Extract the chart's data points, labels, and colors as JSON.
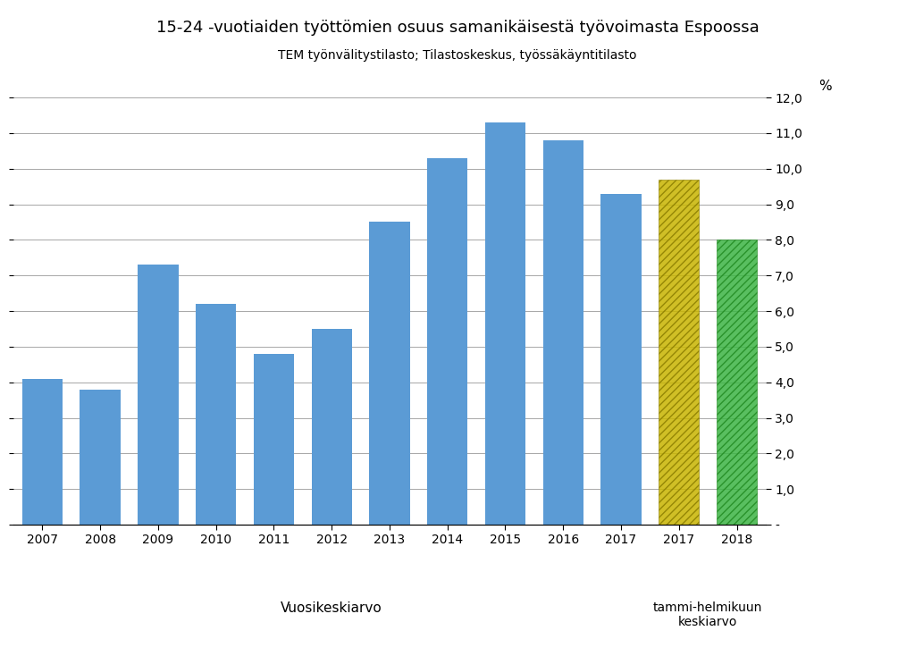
{
  "title": "15-24 -vuotiaiden työttömien osuus samanikäisestä työvoimasta Espoossa",
  "subtitle": "TEM työnvälitystilasto; Tilastoskeskus, työssäkäyntitilasto",
  "xlabel": "Vuosikeskiarvo",
  "ylabel_pct": "%",
  "years": [
    "2007",
    "2008",
    "2009",
    "2010",
    "2011",
    "2012",
    "2013",
    "2014",
    "2015",
    "2016",
    "2017"
  ],
  "values": [
    4.1,
    3.8,
    7.3,
    6.2,
    4.8,
    5.5,
    8.5,
    10.3,
    11.3,
    10.8,
    9.3
  ],
  "bar_color": "#5B9BD5",
  "special_labels": [
    "2017",
    "2018"
  ],
  "special_values": [
    9.7,
    8.0
  ],
  "special_colors_fill": [
    "#C8B400",
    "#3CB444"
  ],
  "special_colors_edge": [
    "#8B7D00",
    "#228B22"
  ],
  "special_note": "tammi-helmikuun\nkeskiarvo",
  "ylim": [
    0,
    12.0
  ],
  "yticks": [
    0.0,
    1.0,
    2.0,
    3.0,
    4.0,
    5.0,
    6.0,
    7.0,
    8.0,
    9.0,
    10.0,
    11.0,
    12.0
  ],
  "ytick_labels": [
    "-",
    "1,0",
    "2,0",
    "3,0",
    "4,0",
    "5,0",
    "6,0",
    "7,0",
    "8,0",
    "9,0",
    "10,0",
    "11,0",
    "12,0"
  ],
  "background_color": "#FFFFFF",
  "grid_color": "#999999",
  "title_fontsize": 13,
  "subtitle_fontsize": 10,
  "tick_fontsize": 10,
  "label_fontsize": 11
}
